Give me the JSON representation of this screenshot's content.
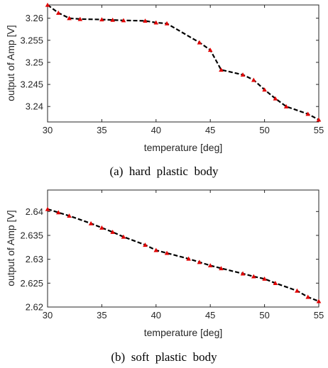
{
  "chart_data": [
    {
      "type": "line",
      "caption": "(a)  hard  plastic  body",
      "xlabel": "temperature [deg]",
      "ylabel": "output of Amp [V]",
      "xlim": [
        30,
        55
      ],
      "ylim": [
        3.2365,
        3.263
      ],
      "xticks": [
        30,
        35,
        40,
        45,
        50,
        55
      ],
      "yticks": [
        3.24,
        3.245,
        3.25,
        3.255,
        3.26
      ],
      "ytick_labels": [
        "3.24",
        "3.245",
        "3.25",
        "3.255",
        "3.26"
      ],
      "series": [
        {
          "style": "dashed-line-with-triangle-markers",
          "line_color": "#000000",
          "marker_color": "#e00000",
          "x": [
            30,
            31,
            32,
            33,
            35,
            36,
            37,
            39,
            40,
            41,
            44,
            45,
            46,
            48,
            49,
            50,
            51,
            52,
            54,
            55
          ],
          "y": [
            3.263,
            3.2612,
            3.26,
            3.2598,
            3.2597,
            3.2596,
            3.2595,
            3.2594,
            3.259,
            3.2588,
            3.2545,
            3.2528,
            3.2483,
            3.2472,
            3.246,
            3.2438,
            3.2418,
            3.24,
            3.2383,
            3.237
          ]
        }
      ]
    },
    {
      "type": "line",
      "caption": "(b)  soft  plastic  body",
      "xlabel": "temperature [deg]",
      "ylabel": "output of Amp [V]",
      "xlim": [
        30,
        55
      ],
      "ylim": [
        2.62,
        2.6445
      ],
      "xticks": [
        30,
        35,
        40,
        45,
        50,
        55
      ],
      "yticks": [
        2.62,
        2.625,
        2.63,
        2.635,
        2.64
      ],
      "ytick_labels": [
        "2.62",
        "2.625",
        "2.63",
        "2.635",
        "2.64"
      ],
      "series": [
        {
          "style": "dashed-line-with-triangle-markers",
          "line_color": "#000000",
          "marker_color": "#e00000",
          "x": [
            30,
            31,
            32,
            34,
            35,
            36,
            37,
            39,
            40,
            41,
            43,
            44,
            45,
            46,
            48,
            49,
            50,
            51,
            53,
            54,
            55
          ],
          "y": [
            2.6405,
            2.6398,
            2.6391,
            2.6375,
            2.6366,
            2.6357,
            2.6347,
            2.633,
            2.6319,
            2.6313,
            2.6301,
            2.6294,
            2.6287,
            2.6281,
            2.627,
            2.6264,
            2.6259,
            2.625,
            2.6234,
            2.6221,
            2.6212
          ]
        }
      ]
    }
  ]
}
